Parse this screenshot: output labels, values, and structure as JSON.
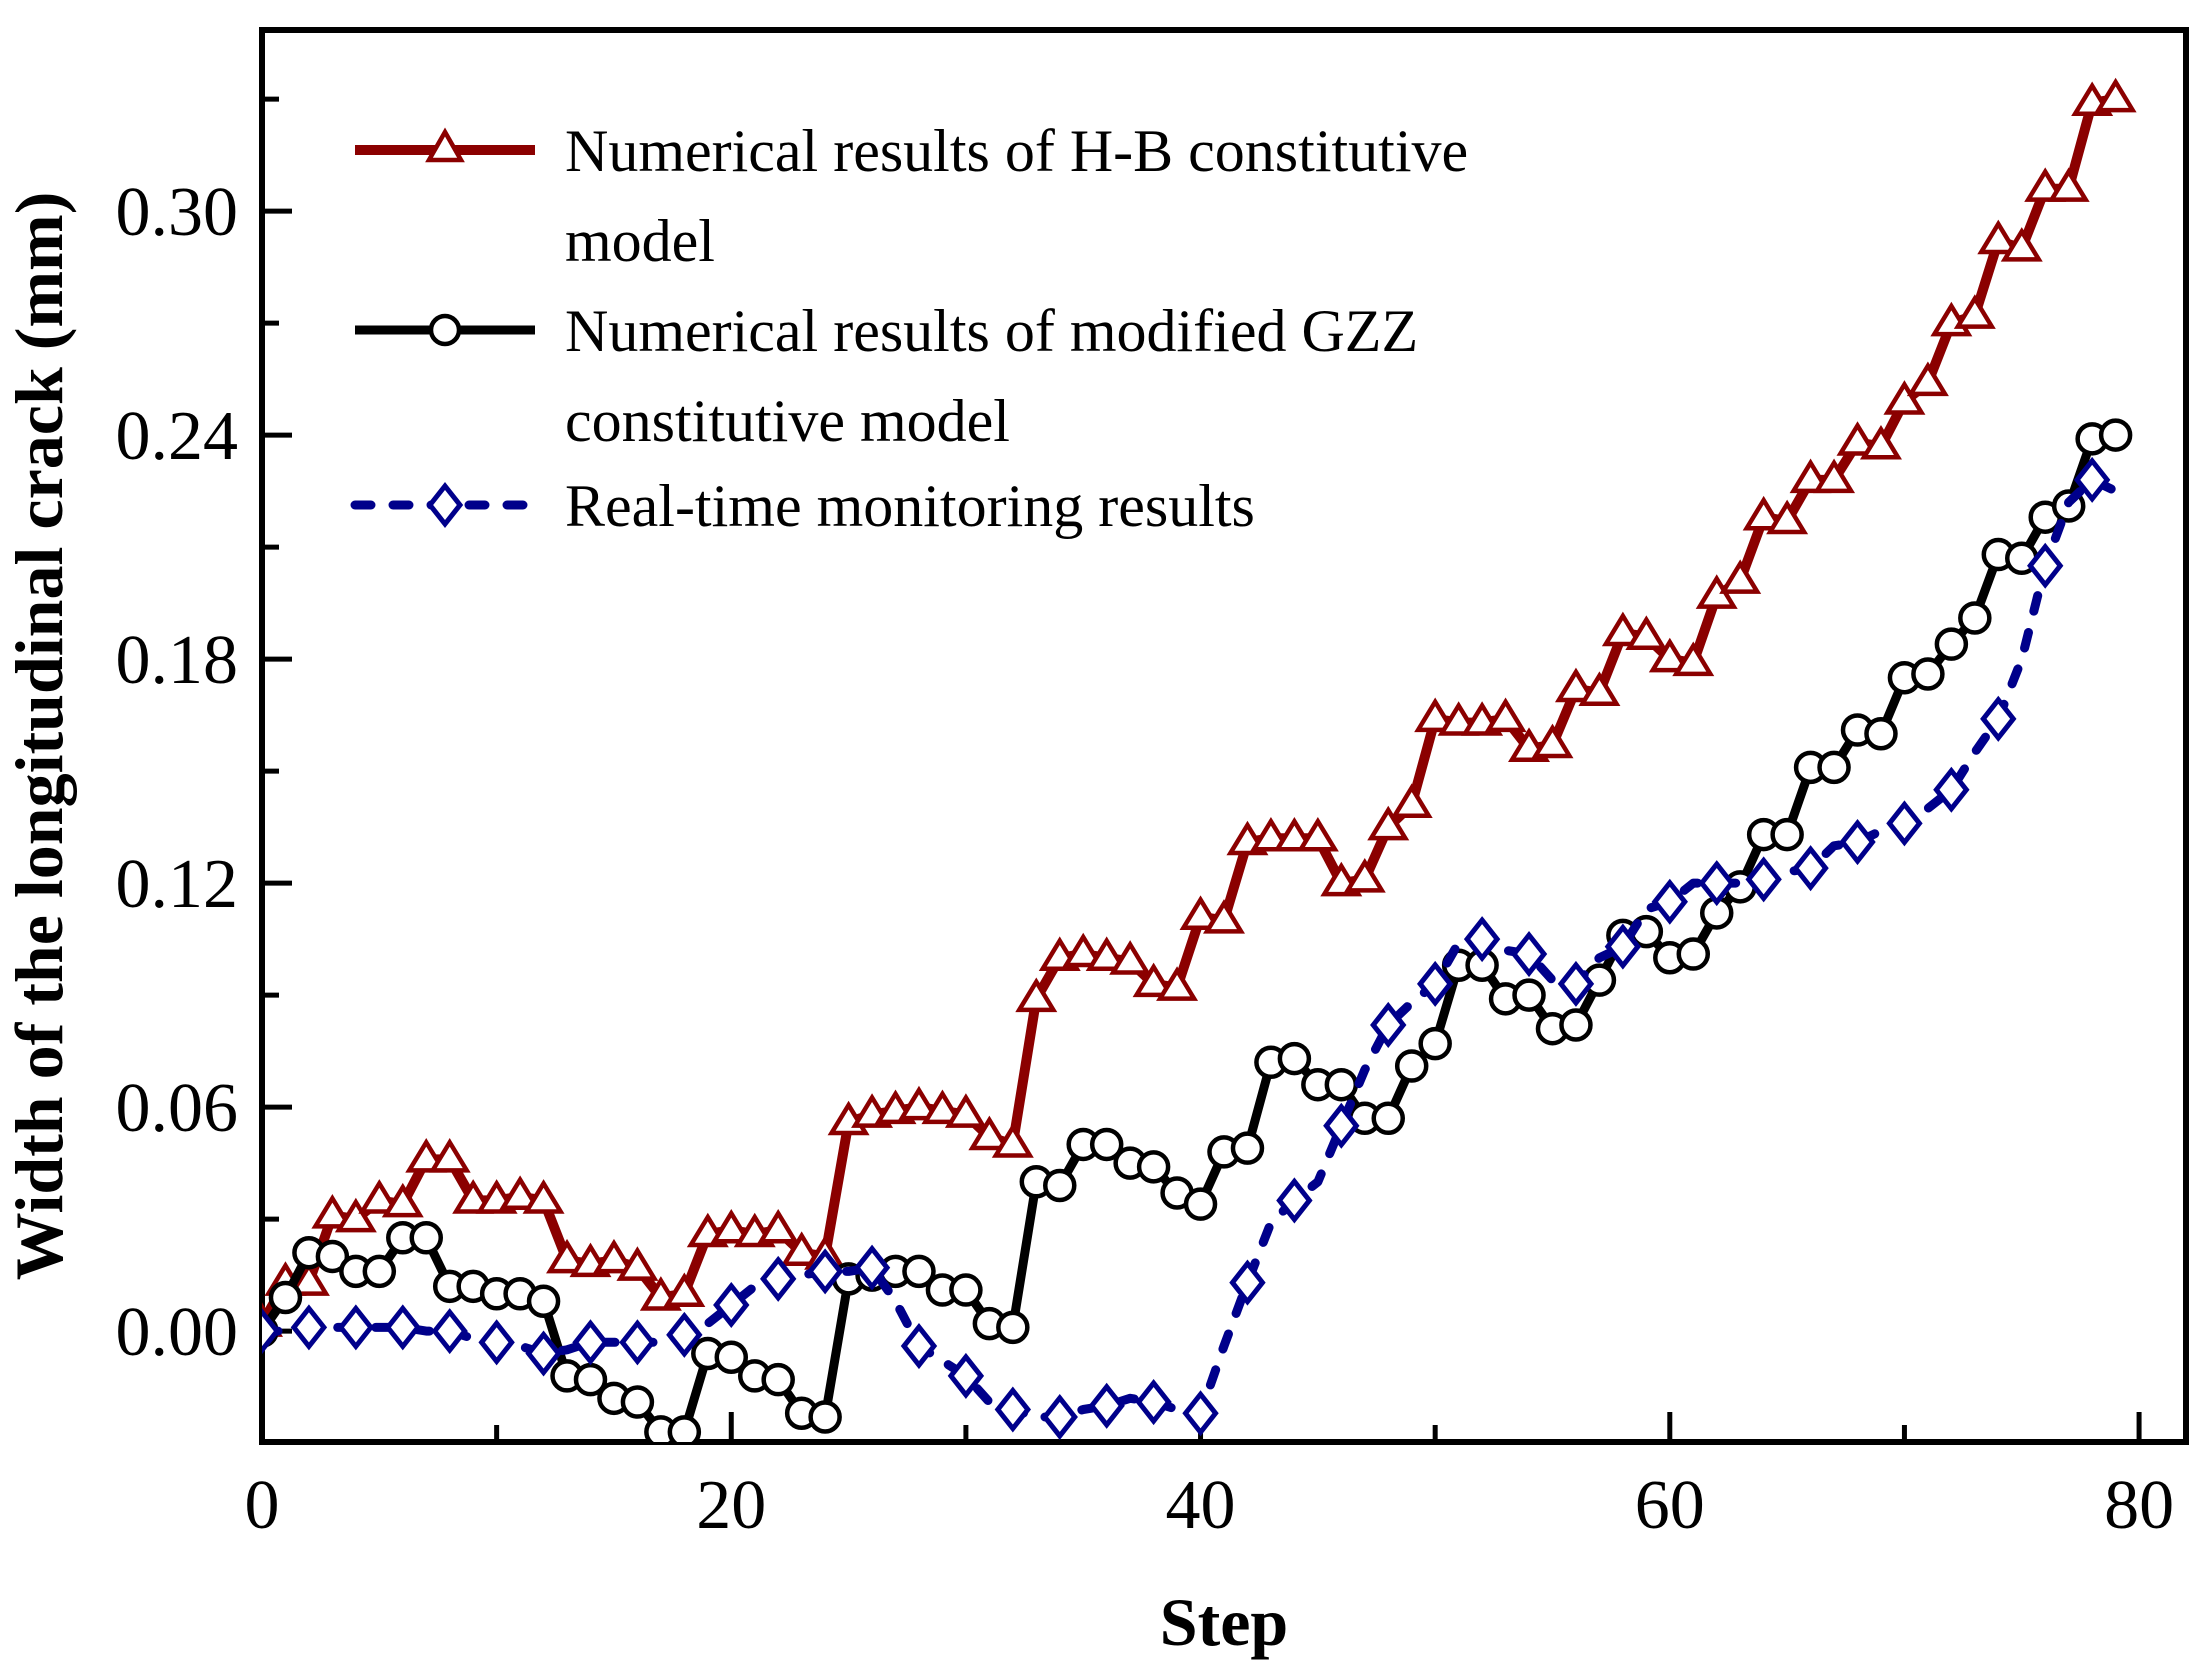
{
  "axes": {
    "x_title": "Step",
    "y_title": "Width of the longitudinal crack (mm)"
  },
  "legend": {
    "items": [
      {
        "lines": [
          "Numerical results of H-B constitutive",
          "model"
        ]
      },
      {
        "lines": [
          "Numerical results of modified GZZ",
          "constitutive model"
        ]
      },
      {
        "lines": [
          "Real-time monitoring results"
        ]
      }
    ]
  },
  "chart_data": {
    "type": "line",
    "title": "",
    "xlabel": "Step",
    "ylabel": "Width of the longitudinal crack (mm)",
    "xlim": [
      0,
      82
    ],
    "ylim": [
      -0.0297,
      0.3485
    ],
    "grid": false,
    "legend_position": "top-left-inside",
    "x_ticks_major": [
      0,
      20,
      40,
      60,
      80
    ],
    "x_ticks_minor": [
      10,
      30,
      50,
      70
    ],
    "y_ticks_major": [
      0.0,
      0.06,
      0.12,
      0.18,
      0.24,
      0.3
    ],
    "y_tick_labels": [
      "0.00",
      "0.06",
      "0.12",
      "0.18",
      "0.24",
      "0.30"
    ],
    "y_ticks_minor": [
      0.03,
      0.09,
      0.15,
      0.21,
      0.27,
      0.33
    ],
    "x_start": 0,
    "x_step": 1,
    "series": [
      {
        "name": "Numerical results of H-B constitutive model",
        "color": "#8B0000",
        "line": "solid",
        "marker": "triangle-open",
        "marker_every": 1,
        "values": [
          0.002,
          0.013,
          0.013,
          0.031,
          0.03,
          0.035,
          0.034,
          0.046,
          0.046,
          0.035,
          0.035,
          0.036,
          0.035,
          0.019,
          0.018,
          0.019,
          0.017,
          0.009,
          0.01,
          0.026,
          0.027,
          0.026,
          0.027,
          0.021,
          0.02,
          0.056,
          0.058,
          0.059,
          0.06,
          0.059,
          0.058,
          0.052,
          0.05,
          0.089,
          0.1,
          0.101,
          0.1,
          0.099,
          0.093,
          0.092,
          0.111,
          0.11,
          0.131,
          0.132,
          0.132,
          0.132,
          0.12,
          0.121,
          0.135,
          0.141,
          0.164,
          0.163,
          0.163,
          0.164,
          0.156,
          0.157,
          0.172,
          0.171,
          0.187,
          0.186,
          0.18,
          0.179,
          0.197,
          0.201,
          0.218,
          0.217,
          0.228,
          0.228,
          0.238,
          0.237,
          0.249,
          0.254,
          0.27,
          0.272,
          0.292,
          0.29,
          0.306,
          0.306,
          0.329,
          0.33
        ]
      },
      {
        "name": "Numerical results of modified GZZ constitutive model",
        "color": "#000000",
        "line": "solid",
        "marker": "circle-open",
        "marker_every": 1,
        "values": [
          0.0,
          0.009,
          0.021,
          0.02,
          0.016,
          0.016,
          0.025,
          0.025,
          0.012,
          0.012,
          0.01,
          0.01,
          0.008,
          -0.012,
          -0.013,
          -0.018,
          -0.019,
          -0.027,
          -0.027,
          -0.006,
          -0.007,
          -0.012,
          -0.013,
          -0.022,
          -0.023,
          0.014,
          0.015,
          0.016,
          0.016,
          0.011,
          0.011,
          0.002,
          0.001,
          0.04,
          0.039,
          0.05,
          0.05,
          0.045,
          0.044,
          0.037,
          0.034,
          0.048,
          0.049,
          0.072,
          0.073,
          0.066,
          0.066,
          0.057,
          0.057,
          0.071,
          0.077,
          0.098,
          0.098,
          0.089,
          0.09,
          0.081,
          0.082,
          0.094,
          0.106,
          0.107,
          0.1,
          0.101,
          0.112,
          0.119,
          0.133,
          0.133,
          0.151,
          0.151,
          0.161,
          0.16,
          0.175,
          0.176,
          0.184,
          0.191,
          0.208,
          0.207,
          0.218,
          0.221,
          0.239,
          0.24
        ]
      },
      {
        "name": "Real-time monitoring results",
        "color": "#00008B",
        "line": "dashed",
        "marker": "diamond-open",
        "marker_every": 2,
        "values": [
          0.0,
          0.0,
          0.001,
          0.001,
          0.001,
          0.001,
          0.001,
          0.0,
          0.0,
          -0.002,
          -0.003,
          -0.004,
          -0.006,
          -0.005,
          -0.003,
          -0.003,
          -0.003,
          -0.003,
          -0.001,
          0.002,
          0.007,
          0.012,
          0.014,
          0.015,
          0.016,
          0.016,
          0.017,
          0.008,
          -0.004,
          -0.008,
          -0.012,
          -0.019,
          -0.021,
          -0.023,
          -0.023,
          -0.021,
          -0.02,
          -0.018,
          -0.019,
          -0.021,
          -0.022,
          -0.004,
          0.013,
          0.029,
          0.035,
          0.04,
          0.055,
          0.07,
          0.082,
          0.088,
          0.093,
          0.104,
          0.105,
          0.102,
          0.101,
          0.094,
          0.093,
          0.1,
          0.103,
          0.113,
          0.115,
          0.12,
          0.12,
          0.12,
          0.121,
          0.123,
          0.124,
          0.13,
          0.131,
          0.134,
          0.136,
          0.14,
          0.145,
          0.155,
          0.164,
          0.18,
          0.205,
          0.222,
          0.228,
          0.225
        ]
      }
    ]
  }
}
